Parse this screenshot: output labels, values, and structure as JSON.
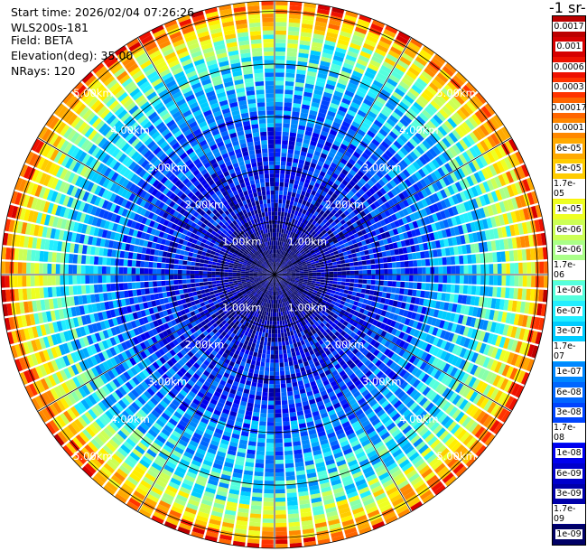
{
  "header": {
    "start_time": "Start time: 2026/02/04 07:26:26",
    "instrument": "WLS200s-181",
    "field": "Field: BETA",
    "elevation": "Elevation(deg): 35.00",
    "nrays": "NRays: 120"
  },
  "colorbar": {
    "units_label": "-1 sr-",
    "labels": [
      "0.0017",
      "0.001",
      "0.0006",
      "0.0003",
      "0.00017",
      "0.0001",
      "6e-05",
      "3e-05",
      "1.7e-05",
      "1e-05",
      "6e-06",
      "3e-06",
      "1.7e-06",
      "1e-06",
      "6e-07",
      "3e-07",
      "1.7e-07",
      "1e-07",
      "6e-08",
      "3e-08",
      "1.7e-08",
      "1e-08",
      "6e-09",
      "3e-09",
      "1.7e-09",
      "1e-09"
    ],
    "colors": [
      "#bb0000",
      "#d60000",
      "#ee1100",
      "#ff3300",
      "#ff6600",
      "#ff8800",
      "#ffaa00",
      "#ffcc00",
      "#ffee00",
      "#eeff22",
      "#ccff55",
      "#aaff88",
      "#88ffaa",
      "#55ffdd",
      "#22eeff",
      "#00ccff",
      "#00aaff",
      "#0088ff",
      "#0066ff",
      "#0044ff",
      "#0022ff",
      "#0000ee",
      "#0000cc",
      "#0000aa",
      "#000088",
      "#000066"
    ]
  },
  "chart_data": {
    "type": "heatmap",
    "projection": "polar",
    "field": "BETA",
    "elevation_deg": 35.0,
    "n_rays": 120,
    "range_rings_km": [
      1,
      2,
      3,
      4,
      5
    ],
    "ring_labels": [
      "1.00km",
      "2.00km",
      "3.00km",
      "4.00km",
      "5.00km"
    ],
    "max_range_km": 5.2,
    "spokes_deg": [
      0,
      30,
      60,
      90,
      120,
      150,
      180,
      210,
      240,
      270,
      300,
      330
    ],
    "color_scale": "log",
    "value_range": [
      1e-09,
      0.0017
    ],
    "radial_profile": [
      {
        "range_km": 0.5,
        "value": 1e-09
      },
      {
        "range_km": 1.5,
        "value": 1e-08
      },
      {
        "range_km": 2.5,
        "value": 3e-08
      },
      {
        "range_km": 3.5,
        "value": 1.7e-07
      },
      {
        "range_km": 4.3,
        "value": 1e-06
      },
      {
        "range_km": 4.9,
        "value": 3e-05
      },
      {
        "range_km": 5.2,
        "value": 0.0003
      }
    ],
    "grid": true
  }
}
